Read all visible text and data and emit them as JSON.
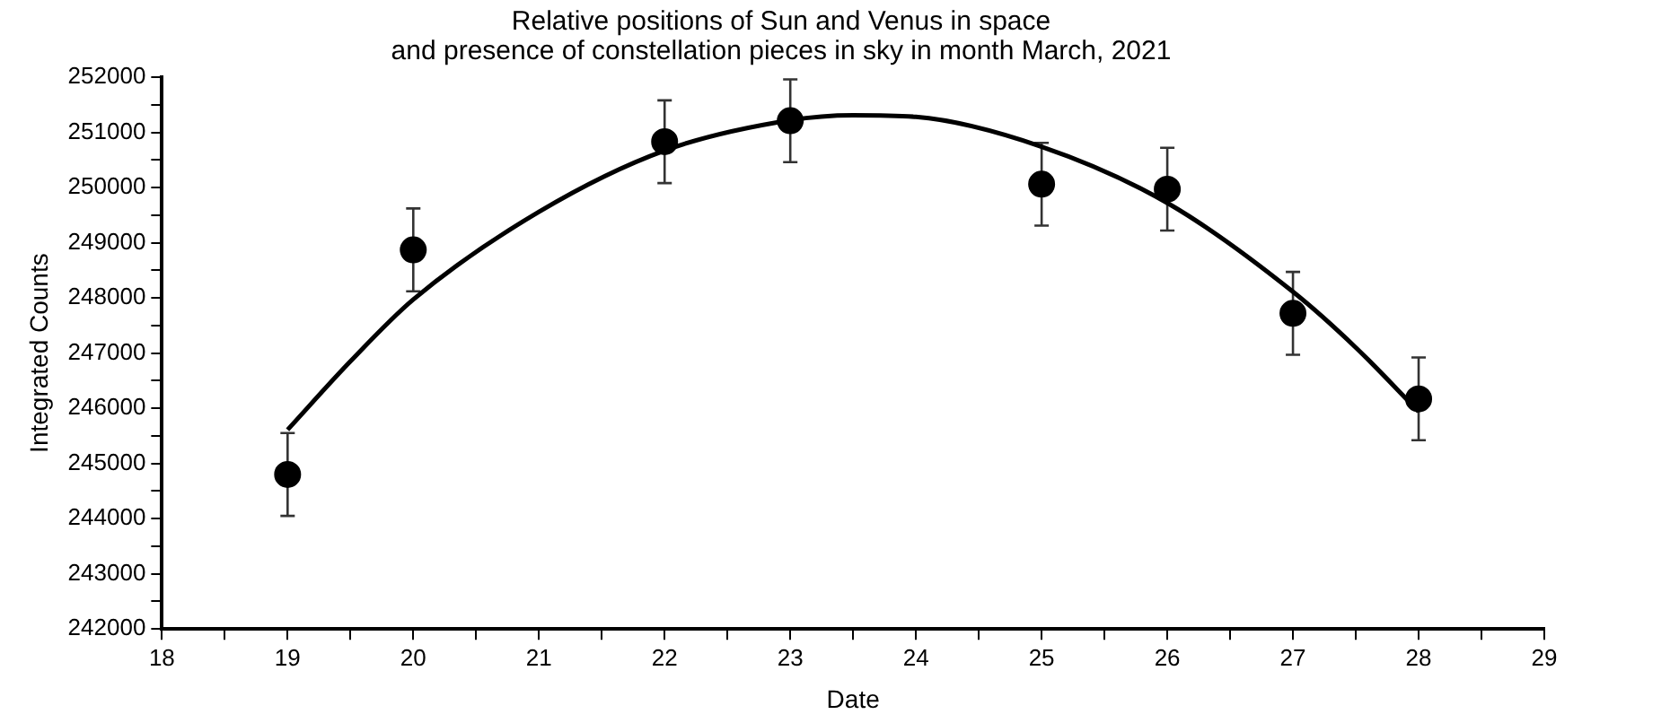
{
  "chart_data": {
    "type": "scatter",
    "title": [
      "Relative positions of Sun and Venus in space",
      "and presence of constellation pieces in sky in month March, 2021"
    ],
    "xlabel": "Date",
    "ylabel": "Integrated Counts",
    "xlim": [
      18,
      29
    ],
    "xticks": [
      18,
      {
        "value": 18.5,
        "label": null
      },
      19,
      {
        "value": 19.5,
        "label": null
      },
      20,
      {
        "value": 20.5,
        "label": null
      },
      21,
      {
        "value": 21.5,
        "label": null
      },
      22,
      {
        "value": 22.5,
        "label": null
      },
      23,
      {
        "value": 23.5,
        "label": null
      },
      24,
      {
        "value": 24.5,
        "label": null
      },
      25,
      {
        "value": 25.5,
        "label": null
      },
      26,
      {
        "value": 26.5,
        "label": null
      },
      27,
      {
        "value": 27.5,
        "label": null
      },
      28,
      {
        "value": 28.5,
        "label": null
      },
      29
    ],
    "ylim": [
      242000,
      252000
    ],
    "yticks": [
      242000,
      {
        "value": 242500,
        "label": null
      },
      243000,
      {
        "value": 243500,
        "label": null
      },
      244000,
      {
        "value": 244500,
        "label": null
      },
      245000,
      {
        "value": 245500,
        "label": null
      },
      246000,
      {
        "value": 246500,
        "label": null
      },
      247000,
      {
        "value": 247500,
        "label": null
      },
      248000,
      {
        "value": 248500,
        "label": null
      },
      249000,
      {
        "value": 249500,
        "label": null
      },
      250000,
      {
        "value": 250500,
        "label": null
      },
      251000,
      {
        "value": 251500,
        "label": null
      },
      252000
    ],
    "grid": false,
    "legend": false,
    "series": [
      {
        "color": "#000000",
        "marker": "circle",
        "x": [
          19,
          20,
          22,
          23,
          25,
          26,
          27,
          28
        ],
        "values": [
          244800,
          248870,
          250830,
          251210,
          250060,
          249970,
          247720,
          246170
        ],
        "errors": [
          750,
          750,
          750,
          750,
          750,
          750,
          750,
          750
        ]
      },
      {
        "type": "line",
        "color": "#000000",
        "marker": "none",
        "line_style": "solid",
        "x": [
          19,
          19.5,
          20,
          21,
          22,
          23,
          23.5,
          24,
          25,
          26,
          27,
          27.5,
          28
        ],
        "values": [
          245610,
          246850,
          247970,
          249560,
          250670,
          251220,
          251310,
          251280,
          250740,
          249720,
          248110,
          247100,
          245940
        ]
      }
    ]
  }
}
